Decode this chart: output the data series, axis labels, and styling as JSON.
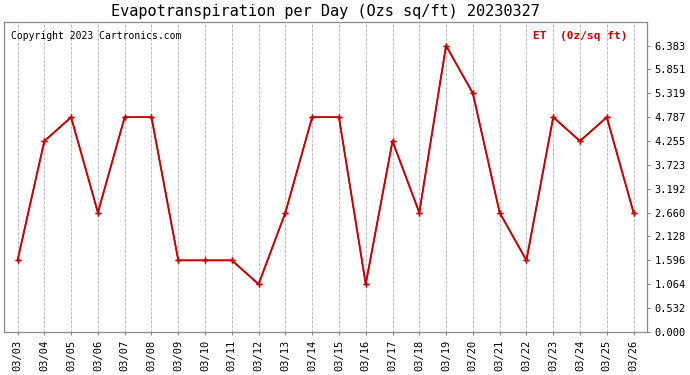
{
  "title": "Evapotranspiration per Day (Ozs sq/ft) 20230327",
  "copyright": "Copyright 2023 Cartronics.com",
  "legend_label": "ET  (0z/sq ft)",
  "dates": [
    "03/03",
    "03/04",
    "03/05",
    "03/06",
    "03/07",
    "03/08",
    "03/09",
    "03/10",
    "03/11",
    "03/12",
    "03/13",
    "03/14",
    "03/15",
    "03/16",
    "03/17",
    "03/18",
    "03/19",
    "03/20",
    "03/21",
    "03/22",
    "03/23",
    "03/24",
    "03/25",
    "03/26"
  ],
  "values": [
    1.596,
    4.255,
    4.787,
    2.66,
    4.787,
    4.787,
    1.596,
    1.596,
    1.596,
    1.064,
    2.66,
    4.787,
    4.787,
    1.064,
    4.255,
    2.66,
    6.383,
    5.319,
    2.66,
    1.596,
    4.787,
    4.255,
    4.787,
    2.66
  ],
  "line_color": "#cc0000",
  "marker": "+",
  "marker_size": 5,
  "background_color": "#ffffff",
  "grid_color": "#aaaaaa",
  "ylim": [
    0.0,
    6.915
  ],
  "yticks": [
    0.0,
    0.532,
    1.064,
    1.596,
    2.128,
    2.66,
    3.192,
    3.723,
    4.255,
    4.787,
    5.319,
    5.851,
    6.383
  ],
  "title_fontsize": 11,
  "copyright_fontsize": 7,
  "legend_fontsize": 8,
  "tick_fontsize": 7.5
}
